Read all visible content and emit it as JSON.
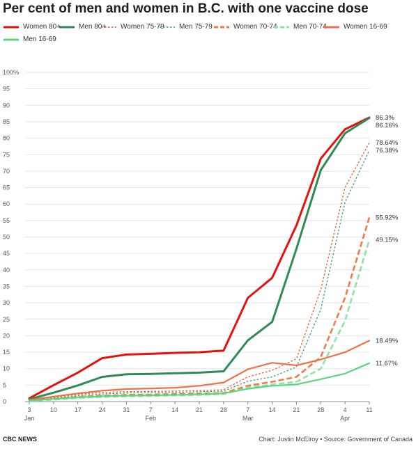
{
  "chart_data": {
    "type": "line",
    "title": "Per cent of men and women in B.C. with one vaccine dose",
    "xlabel": "",
    "ylabel": "",
    "ylim": [
      0,
      100
    ],
    "y_ticks": [
      "0",
      "5",
      "10",
      "15",
      "20",
      "25",
      "30",
      "35",
      "40",
      "45",
      "50",
      "55",
      "60",
      "65",
      "70",
      "75",
      "80",
      "85",
      "90",
      "95",
      "100%"
    ],
    "x": [
      "2021-01-03",
      "2021-01-10",
      "2021-01-17",
      "2021-01-24",
      "2021-01-31",
      "2021-02-07",
      "2021-02-14",
      "2021-02-21",
      "2021-02-28",
      "2021-03-07",
      "2021-03-14",
      "2021-03-21",
      "2021-03-28",
      "2021-04-04",
      "2021-04-11"
    ],
    "x_ticks": [
      {
        "day": "3",
        "month": "Jan"
      },
      {
        "day": "10",
        "month": ""
      },
      {
        "day": "17",
        "month": ""
      },
      {
        "day": "24",
        "month": ""
      },
      {
        "day": "31",
        "month": ""
      },
      {
        "day": "7",
        "month": "Feb"
      },
      {
        "day": "14",
        "month": ""
      },
      {
        "day": "21",
        "month": ""
      },
      {
        "day": "28",
        "month": ""
      },
      {
        "day": "7",
        "month": "Mar"
      },
      {
        "day": "14",
        "month": ""
      },
      {
        "day": "21",
        "month": ""
      },
      {
        "day": "28",
        "month": ""
      },
      {
        "day": "4",
        "month": "Apr"
      },
      {
        "day": "11",
        "month": ""
      }
    ],
    "grid": true,
    "legend_position": "top",
    "series": [
      {
        "name": "Women 80+",
        "color": "#e3120b",
        "style": "solid",
        "width": 3,
        "values": [
          1.0,
          5.0,
          8.8,
          13.2,
          14.3,
          14.5,
          14.8,
          15.0,
          15.5,
          31.5,
          37.6,
          53.5,
          73.8,
          82.7,
          86.3
        ],
        "end_label": "86.3%"
      },
      {
        "name": "Men 80+",
        "color": "#2e8b57",
        "style": "solid",
        "width": 3,
        "values": [
          0.7,
          2.7,
          4.9,
          7.5,
          8.3,
          8.4,
          8.6,
          8.8,
          9.2,
          18.6,
          24.2,
          46.4,
          70.3,
          81.5,
          86.16
        ],
        "end_label": "86.16%"
      },
      {
        "name": "Women 75-79",
        "color": "#e8552c",
        "style": "dotted",
        "width": 1.3,
        "values": [
          0.6,
          1.3,
          2.2,
          2.8,
          3.0,
          3.1,
          3.2,
          3.4,
          3.6,
          7.5,
          9.5,
          13.0,
          34.0,
          65.0,
          78.64
        ],
        "end_label": "78.64%"
      },
      {
        "name": "Men 75-79",
        "color": "#3a9a70",
        "style": "dotted",
        "width": 1.3,
        "values": [
          0.5,
          1.0,
          1.8,
          2.3,
          2.6,
          2.7,
          2.8,
          3.0,
          3.2,
          6.2,
          7.5,
          10.5,
          28.0,
          60.5,
          76.38
        ],
        "end_label": "76.38%"
      },
      {
        "name": "Women 70-74",
        "color": "#f07a48",
        "style": "dashed",
        "width": 2.6,
        "values": [
          0.3,
          0.8,
          1.4,
          1.8,
          2.0,
          2.1,
          2.3,
          2.4,
          2.6,
          4.8,
          6.0,
          7.5,
          13.5,
          31.5,
          55.92
        ],
        "end_label": "55.92%"
      },
      {
        "name": "Men 70-74",
        "color": "#8fe3a6",
        "style": "dashed",
        "width": 2.6,
        "values": [
          0.2,
          0.6,
          1.1,
          1.4,
          1.6,
          1.7,
          1.9,
          2.0,
          2.3,
          4.2,
          5.2,
          6.0,
          10.0,
          24.5,
          49.15
        ],
        "end_label": "49.15%"
      },
      {
        "name": "Women 16-69",
        "color": "#f07048",
        "style": "solid",
        "width": 2.2,
        "values": [
          0.5,
          1.5,
          2.5,
          3.3,
          3.8,
          4.0,
          4.2,
          4.8,
          5.8,
          9.8,
          11.8,
          11.0,
          12.8,
          15.0,
          18.49
        ],
        "end_label": "18.49%"
      },
      {
        "name": "Men 16-69",
        "color": "#5ad67d",
        "style": "solid",
        "width": 2.2,
        "values": [
          0.3,
          0.8,
          1.3,
          1.6,
          1.8,
          1.9,
          2.0,
          2.2,
          2.5,
          3.9,
          4.8,
          5.2,
          6.8,
          8.5,
          11.67
        ],
        "end_label": "11.67%"
      }
    ]
  },
  "footer": {
    "source_left": "CBC NEWS",
    "source_right": "Chart: Justin McElroy • Source: Government of Canada"
  }
}
